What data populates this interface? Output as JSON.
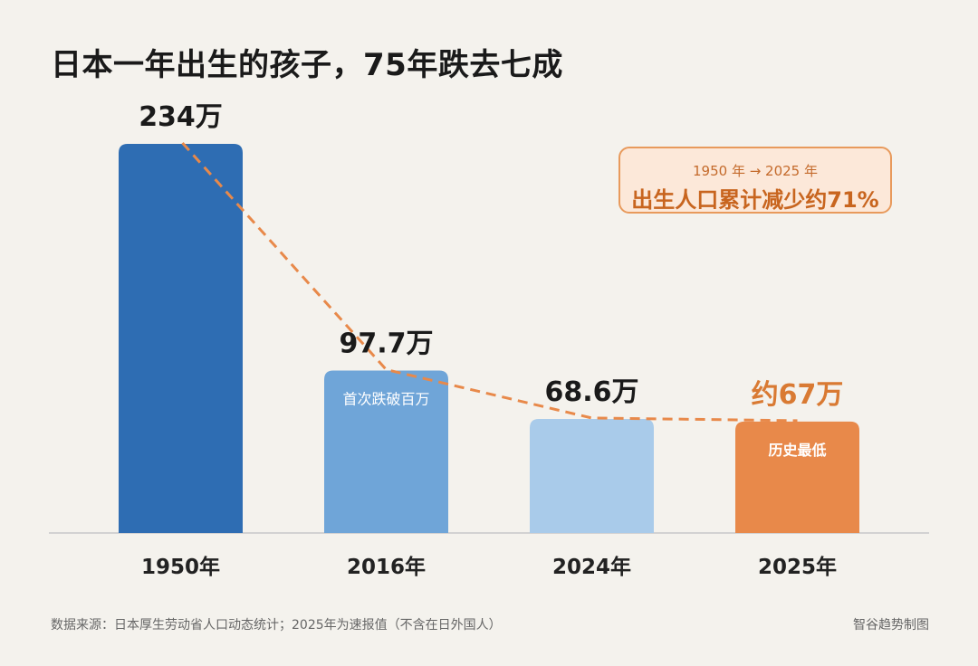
{
  "title": "日本一年出生的孩子，75年跌去七成",
  "chart_data": {
    "type": "bar",
    "categories": [
      "1950年",
      "2016年",
      "2024年",
      "2025年"
    ],
    "values": [
      234,
      97.7,
      68.6,
      67
    ],
    "value_labels": [
      "234万",
      "97.7万",
      "68.6万",
      "约67万"
    ],
    "bar_notes": [
      "",
      "首次跌破百万",
      "",
      "历史最低"
    ],
    "bar_colors": [
      "#2e6db3",
      "#6fa5d8",
      "#a9cbea",
      "#e8894a"
    ],
    "label_colors": [
      "#1a1a1a",
      "#1a1a1a",
      "#1a1a1a",
      "#d97a33"
    ],
    "trend_line": {
      "style": "dashed",
      "color": "#e8894a"
    },
    "ylim": [
      0,
      234
    ],
    "grid": false,
    "xlabel": "",
    "ylabel": ""
  },
  "callout": {
    "line1": "1950 年 → 2025 年",
    "line2": "出生人口累计减少约71%"
  },
  "footer": {
    "source": "数据来源：日本厚生劳动省人口动态统计；2025年为速报值（不含在日外国人）",
    "credit": "智谷趋势制图"
  }
}
